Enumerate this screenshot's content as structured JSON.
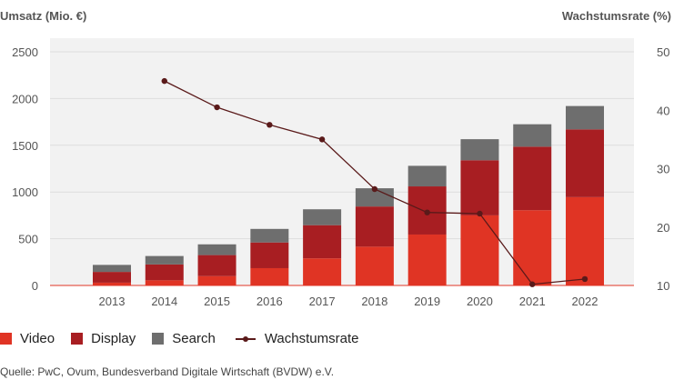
{
  "chart_data": {
    "type": "bar",
    "stacked": true,
    "left_axis_title": "Umsatz (Mio. €)",
    "right_axis_title": "Wachstumsrate (%)",
    "categories": [
      "2013",
      "2014",
      "2015",
      "2016",
      "2017",
      "2018",
      "2019",
      "2020",
      "2021",
      "2022"
    ],
    "series": [
      {
        "name": "Video",
        "color": "#e03424",
        "values": [
          30,
          55,
          100,
          185,
          290,
          415,
          545,
          750,
          805,
          945
        ]
      },
      {
        "name": "Display",
        "color": "#a81e22",
        "values": [
          115,
          170,
          225,
          275,
          355,
          430,
          515,
          590,
          680,
          725
        ]
      },
      {
        "name": "Search",
        "color": "#6e6e6e",
        "values": [
          75,
          90,
          115,
          145,
          170,
          195,
          220,
          225,
          240,
          250
        ]
      }
    ],
    "line_series": {
      "name": "Wachstumsrate",
      "color": "#5a1a1a",
      "axis": "right",
      "values": [
        null,
        45,
        40.5,
        37.5,
        35,
        26.5,
        22.5,
        22.3,
        10.2,
        11.1
      ]
    },
    "ylim_left": [
      0,
      2500
    ],
    "yticks_left": [
      0,
      500,
      1000,
      1500,
      2000,
      2500
    ],
    "ylim_right": [
      10,
      50
    ],
    "yticks_right": [
      10,
      20,
      30,
      40,
      50
    ],
    "grid": true,
    "legend": "bottom-left"
  },
  "legend": {
    "video": "Video",
    "display": "Display",
    "search": "Search",
    "line": "Wachstumsrate"
  },
  "source": "Quelle: PwC, Ovum, Bundesverband Digitale Wirtschaft (BVDW) e.V."
}
